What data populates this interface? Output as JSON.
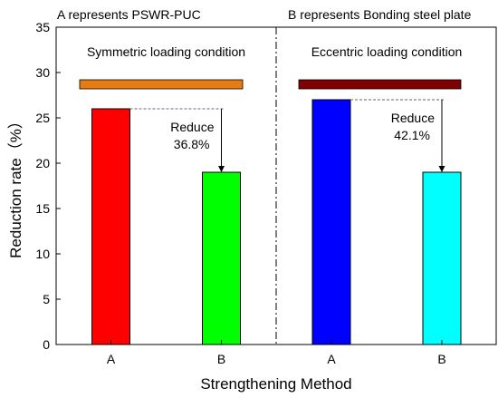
{
  "header": {
    "left_note": "A represents PSWR-PUC",
    "right_note": "B represents Bonding steel plate"
  },
  "chart_data": {
    "type": "bar",
    "xlabel": "Strengthening Method",
    "ylabel": "Reduction rate（%）",
    "ylim": [
      0,
      35
    ],
    "yticks": [
      0,
      5,
      10,
      15,
      20,
      25,
      30,
      35
    ],
    "grid": false,
    "panels": [
      {
        "condition": "Symmetric loading condition",
        "header_bar_color": "#e87c13",
        "bars": [
          {
            "category": "A",
            "value": 26,
            "color": "#ff0000"
          },
          {
            "category": "B",
            "value": 19,
            "color": "#00ff00"
          }
        ],
        "annotation": {
          "line1": "Reduce",
          "line2": "36.8%"
        }
      },
      {
        "condition": "Eccentric loading condition",
        "header_bar_color": "#800000",
        "bars": [
          {
            "category": "A",
            "value": 27,
            "color": "#0000ff"
          },
          {
            "category": "B",
            "value": 19,
            "color": "#00ffff"
          }
        ],
        "annotation": {
          "line1": "Reduce",
          "line2": "42.1%"
        }
      }
    ]
  }
}
